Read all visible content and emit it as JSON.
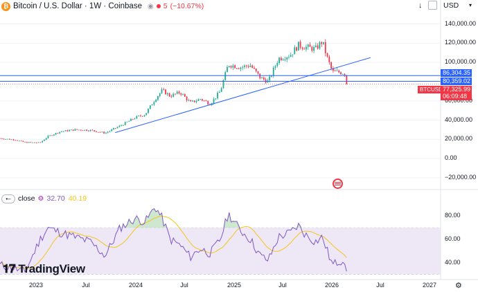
{
  "header": {
    "symbol": "Bitcoin / U.S. Dollar · 1W · Coinbase",
    "coin_badge": "₿",
    "change_count": "5",
    "change_pct": "(−10.67%)",
    "currency": "USD"
  },
  "price_axis": {
    "labels": [
      "140,000.00",
      "120,000.00",
      "100,000.00",
      "60,000.00",
      "40,000.00",
      "20,000.00",
      "0.00",
      "−20,000.00"
    ],
    "ticks": [
      140000,
      120000,
      100000,
      60000,
      40000,
      20000,
      0,
      -20000
    ]
  },
  "price_tags": {
    "level1": "86,304.35",
    "level2": "80,359.02",
    "symbol": "BTCUSD",
    "price": "77,325.99",
    "countdown": "06:09:48"
  },
  "indicator": {
    "name": "close",
    "rsi_value": "32.70",
    "ma_value": "40.19",
    "axis_labels": [
      "80.00",
      "60.00",
      "40.00"
    ],
    "axis_ticks": [
      80,
      60,
      40
    ]
  },
  "time_axis": {
    "labels": [
      "2023",
      "Jul",
      "2024",
      "Jul",
      "2025",
      "Jul",
      "2026",
      "Jul",
      "2027"
    ]
  },
  "branding": {
    "logo_text": "TradingView"
  },
  "colors": {
    "up": "#22ab94",
    "down": "#f23645",
    "trendline": "#2962ff",
    "rsi": "#7e57c2",
    "rsi_ma": "#f5c518",
    "rsi_band": "#ede7f6"
  },
  "chart_data": {
    "type": "candlestick",
    "title": "Bitcoin / U.S. Dollar · 1W · Coinbase",
    "x_range": [
      2022.6,
      2027.0
    ],
    "y_range": [
      -28000,
      152000
    ],
    "anchors": [
      [
        2022.6,
        21000
      ],
      [
        2022.75,
        19500
      ],
      [
        2022.85,
        16800
      ],
      [
        2023.0,
        16500
      ],
      [
        2023.08,
        23000
      ],
      [
        2023.2,
        28000
      ],
      [
        2023.35,
        30000
      ],
      [
        2023.5,
        29500
      ],
      [
        2023.65,
        26500
      ],
      [
        2023.8,
        34000
      ],
      [
        2023.95,
        42500
      ],
      [
        2024.05,
        46000
      ],
      [
        2024.15,
        62000
      ],
      [
        2024.22,
        71000
      ],
      [
        2024.3,
        65000
      ],
      [
        2024.4,
        69000
      ],
      [
        2024.5,
        58000
      ],
      [
        2024.6,
        62000
      ],
      [
        2024.7,
        57000
      ],
      [
        2024.8,
        70000
      ],
      [
        2024.88,
        98000
      ],
      [
        2025.0,
        95000
      ],
      [
        2025.1,
        97000
      ],
      [
        2025.2,
        84000
      ],
      [
        2025.28,
        80000
      ],
      [
        2025.38,
        104000
      ],
      [
        2025.5,
        108000
      ],
      [
        2025.58,
        118000
      ],
      [
        2025.65,
        116000
      ],
      [
        2025.75,
        114000
      ],
      [
        2025.82,
        122000
      ],
      [
        2025.86,
        107000
      ],
      [
        2025.92,
        90000
      ],
      [
        2025.98,
        90000
      ],
      [
        2026.04,
        89000
      ],
      [
        2026.07,
        77300
      ]
    ],
    "horizontal_levels": [
      86304.35,
      80359.02
    ],
    "trendline": {
      "from": [
        2023.75,
        27000
      ],
      "to": [
        2026.3,
        105000
      ]
    },
    "rsi_range": [
      28,
      92
    ],
    "rsi_band": [
      30,
      70
    ],
    "rsi_anchors": [
      [
        2022.6,
        38
      ],
      [
        2022.75,
        35
      ],
      [
        2022.85,
        32
      ],
      [
        2023.0,
        60
      ],
      [
        2023.08,
        70
      ],
      [
        2023.2,
        66
      ],
      [
        2023.35,
        62
      ],
      [
        2023.5,
        58
      ],
      [
        2023.65,
        46
      ],
      [
        2023.8,
        70
      ],
      [
        2023.95,
        78
      ],
      [
        2024.05,
        75
      ],
      [
        2024.15,
        88
      ],
      [
        2024.22,
        78
      ],
      [
        2024.3,
        60
      ],
      [
        2024.4,
        55
      ],
      [
        2024.5,
        45
      ],
      [
        2024.6,
        52
      ],
      [
        2024.7,
        48
      ],
      [
        2024.8,
        60
      ],
      [
        2024.88,
        82
      ],
      [
        2025.0,
        68
      ],
      [
        2025.1,
        60
      ],
      [
        2025.2,
        46
      ],
      [
        2025.28,
        42
      ],
      [
        2025.38,
        62
      ],
      [
        2025.5,
        66
      ],
      [
        2025.58,
        72
      ],
      [
        2025.65,
        64
      ],
      [
        2025.75,
        58
      ],
      [
        2025.82,
        62
      ],
      [
        2025.86,
        52
      ],
      [
        2025.92,
        38
      ],
      [
        2025.98,
        41
      ],
      [
        2026.04,
        43
      ],
      [
        2026.07,
        32.7
      ]
    ]
  }
}
